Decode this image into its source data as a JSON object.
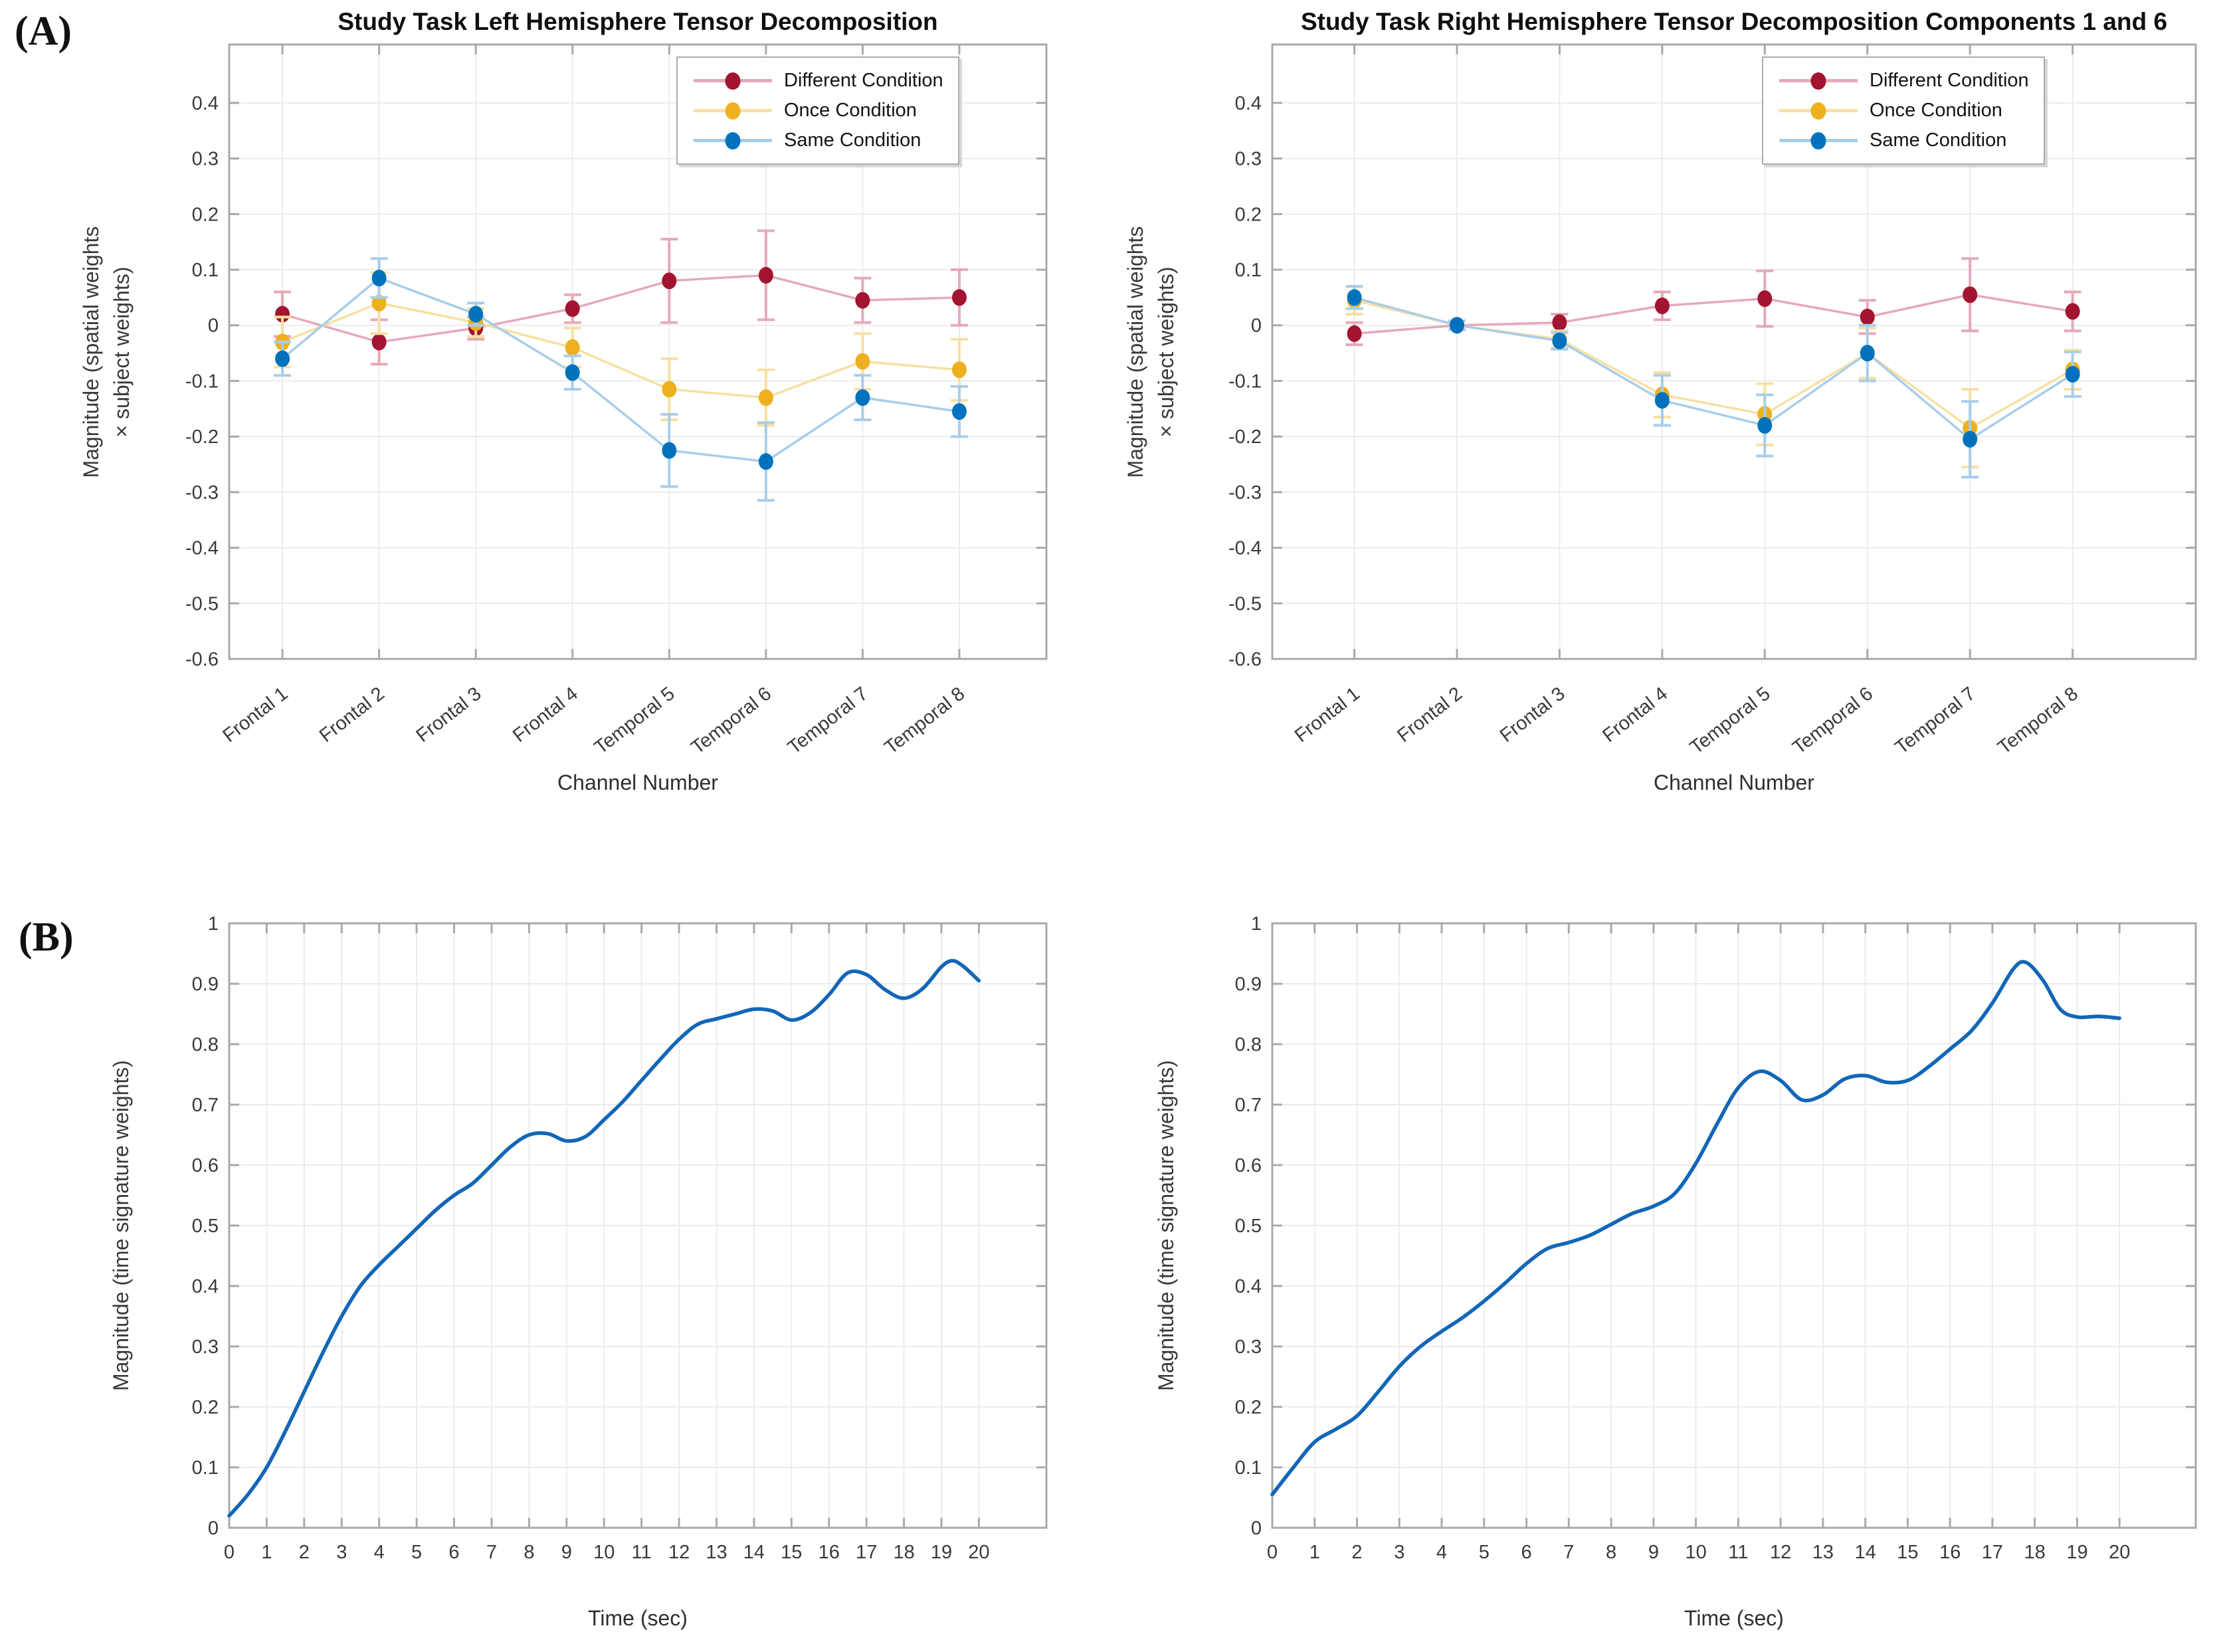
{
  "panel_labels": {
    "a": "(A)",
    "b": "(B)"
  },
  "colors": {
    "axis_box": "#a9a9a9",
    "grid": "#ececec",
    "tick_text": "#3a3a3a",
    "title_text": "#0f0f0f",
    "curve_blue": "#1266b7"
  },
  "chart_data": [
    {
      "id": "top-left",
      "type": "line",
      "variant": "errorbar",
      "title": "Study Task Left Hemisphere Tensor Decomposition",
      "xlabel": "Channel Number",
      "ylabel": [
        "Magnitude (spatial weights",
        "× subject weights)"
      ],
      "categories": [
        "Frontal 1",
        "Frontal 2",
        "Frontal 3",
        "Frontal 4",
        "Temporal 5",
        "Temporal 6",
        "Temporal 7",
        "Temporal 8"
      ],
      "ylim": [
        -0.6,
        0.505
      ],
      "yticks": [
        0.4,
        0.3,
        0.2,
        0.1,
        0,
        -0.1,
        -0.2,
        -0.3,
        -0.4,
        -0.5,
        -0.6
      ],
      "grid": true,
      "legend_position": "top-right-inset",
      "series": [
        {
          "name": "Different Condition",
          "marker_color": "#a2142f",
          "line_color": "#e5a9b7",
          "values": [
            0.02,
            -0.03,
            -0.005,
            0.03,
            0.08,
            0.09,
            0.045,
            0.05
          ],
          "errors": [
            0.04,
            0.04,
            0.02,
            0.025,
            0.075,
            0.08,
            0.04,
            0.05
          ]
        },
        {
          "name": "Once Condition",
          "marker_color": "#edb120",
          "line_color": "#f7e0a2",
          "values": [
            -0.03,
            0.04,
            0.005,
            -0.04,
            -0.115,
            -0.13,
            -0.065,
            -0.08
          ],
          "errors": [
            0.045,
            0.055,
            0.025,
            0.035,
            0.055,
            0.05,
            0.05,
            0.055
          ]
        },
        {
          "name": "Same Condition",
          "marker_color": "#0072bd",
          "line_color": "#a8cdea",
          "values": [
            -0.06,
            0.085,
            0.02,
            -0.085,
            -0.225,
            -0.245,
            -0.13,
            -0.155
          ],
          "errors": [
            0.03,
            0.035,
            0.02,
            0.03,
            0.065,
            0.07,
            0.04,
            0.045
          ]
        }
      ]
    },
    {
      "id": "top-right",
      "type": "line",
      "variant": "errorbar",
      "title": "Study Task Right Hemisphere Tensor Decomposition Components 1 and 6",
      "xlabel": "Channel Number",
      "ylabel": [
        "Magnitude (spatial weights",
        "× subject weights)"
      ],
      "categories": [
        "Frontal 1",
        "Frontal 2",
        "Frontal 3",
        "Frontal 4",
        "Temporal 5",
        "Temporal 6",
        "Temporal 7",
        "Temporal 8"
      ],
      "ylim": [
        -0.6,
        0.505
      ],
      "yticks": [
        0.4,
        0.3,
        0.2,
        0.1,
        0,
        -0.1,
        -0.2,
        -0.3,
        -0.4,
        -0.5,
        -0.6
      ],
      "grid": true,
      "legend_position": "top-right-inset",
      "series": [
        {
          "name": "Different Condition",
          "marker_color": "#a2142f",
          "line_color": "#e5a9b7",
          "values": [
            -0.015,
            0,
            0.005,
            0.035,
            0.048,
            0.015,
            0.055,
            0.025
          ],
          "errors": [
            0.02,
            0.008,
            0.015,
            0.025,
            0.05,
            0.03,
            0.065,
            0.035
          ]
        },
        {
          "name": "Once Condition",
          "marker_color": "#edb120",
          "line_color": "#f7e0a2",
          "values": [
            0.045,
            0,
            -0.025,
            -0.125,
            -0.16,
            -0.05,
            -0.185,
            -0.08
          ],
          "errors": [
            0.025,
            0.008,
            0.015,
            0.04,
            0.055,
            0.045,
            0.07,
            0.035
          ]
        },
        {
          "name": "Same Condition",
          "marker_color": "#0072bd",
          "line_color": "#a8cdea",
          "values": [
            0.05,
            0,
            -0.028,
            -0.135,
            -0.18,
            -0.05,
            -0.205,
            -0.088
          ],
          "errors": [
            0.02,
            0.008,
            0.015,
            0.045,
            0.055,
            0.05,
            0.068,
            0.04
          ]
        }
      ]
    },
    {
      "id": "bottom-left",
      "type": "line",
      "title": "",
      "xlabel": "Time (sec)",
      "ylabel": [
        "Magnitude (time signature weights)"
      ],
      "xlim": [
        0,
        21.8
      ],
      "ylim": [
        0,
        1
      ],
      "xticks": [
        0,
        1,
        2,
        3,
        4,
        5,
        6,
        7,
        8,
        9,
        10,
        11,
        12,
        13,
        14,
        15,
        16,
        17,
        18,
        19,
        20
      ],
      "yticks": [
        0,
        0.1,
        0.2,
        0.3,
        0.4,
        0.5,
        0.6,
        0.7,
        0.8,
        0.9,
        1
      ],
      "grid": true,
      "series": [
        {
          "name": "Time signature weights",
          "color": "#1266b7",
          "points": [
            [
              0,
              0.02
            ],
            [
              0.5,
              0.055
            ],
            [
              1,
              0.1
            ],
            [
              1.5,
              0.16
            ],
            [
              2,
              0.225
            ],
            [
              2.5,
              0.29
            ],
            [
              3,
              0.35
            ],
            [
              3.5,
              0.4
            ],
            [
              4,
              0.435
            ],
            [
              4.5,
              0.465
            ],
            [
              5,
              0.495
            ],
            [
              5.5,
              0.525
            ],
            [
              6,
              0.55
            ],
            [
              6.5,
              0.57
            ],
            [
              7,
              0.6
            ],
            [
              7.5,
              0.63
            ],
            [
              8,
              0.65
            ],
            [
              8.5,
              0.652
            ],
            [
              9,
              0.64
            ],
            [
              9.5,
              0.647
            ],
            [
              10,
              0.675
            ],
            [
              10.5,
              0.705
            ],
            [
              11,
              0.74
            ],
            [
              11.5,
              0.775
            ],
            [
              12,
              0.808
            ],
            [
              12.5,
              0.833
            ],
            [
              13,
              0.842
            ],
            [
              13.5,
              0.85
            ],
            [
              14,
              0.858
            ],
            [
              14.5,
              0.855
            ],
            [
              15,
              0.84
            ],
            [
              15.5,
              0.852
            ],
            [
              16,
              0.882
            ],
            [
              16.5,
              0.918
            ],
            [
              17,
              0.915
            ],
            [
              17.5,
              0.89
            ],
            [
              18,
              0.876
            ],
            [
              18.5,
              0.892
            ],
            [
              19,
              0.928
            ],
            [
              19.3,
              0.938
            ],
            [
              19.6,
              0.928
            ],
            [
              20,
              0.905
            ]
          ]
        }
      ]
    },
    {
      "id": "bottom-right",
      "type": "line",
      "title": "",
      "xlabel": "Time (sec)",
      "ylabel": [
        "Magnitude (time signature weights)"
      ],
      "xlim": [
        0,
        21.8
      ],
      "ylim": [
        0,
        1
      ],
      "xticks": [
        0,
        1,
        2,
        3,
        4,
        5,
        6,
        7,
        8,
        9,
        10,
        11,
        12,
        13,
        14,
        15,
        16,
        17,
        18,
        19,
        20
      ],
      "yticks": [
        0,
        0.1,
        0.2,
        0.3,
        0.4,
        0.5,
        0.6,
        0.7,
        0.8,
        0.9,
        1
      ],
      "grid": true,
      "series": [
        {
          "name": "Time signature weights",
          "color": "#1266b7",
          "points": [
            [
              0,
              0.055
            ],
            [
              0.5,
              0.1
            ],
            [
              1,
              0.142
            ],
            [
              1.5,
              0.163
            ],
            [
              2,
              0.185
            ],
            [
              2.5,
              0.225
            ],
            [
              3,
              0.267
            ],
            [
              3.5,
              0.3
            ],
            [
              4,
              0.325
            ],
            [
              4.5,
              0.348
            ],
            [
              5,
              0.375
            ],
            [
              5.5,
              0.405
            ],
            [
              6,
              0.437
            ],
            [
              6.5,
              0.462
            ],
            [
              7,
              0.472
            ],
            [
              7.5,
              0.484
            ],
            [
              8,
              0.502
            ],
            [
              8.5,
              0.52
            ],
            [
              9,
              0.532
            ],
            [
              9.5,
              0.553
            ],
            [
              10,
              0.603
            ],
            [
              10.5,
              0.668
            ],
            [
              11,
              0.728
            ],
            [
              11.5,
              0.755
            ],
            [
              12,
              0.74
            ],
            [
              12.5,
              0.708
            ],
            [
              13,
              0.716
            ],
            [
              13.5,
              0.742
            ],
            [
              14,
              0.748
            ],
            [
              14.5,
              0.737
            ],
            [
              15,
              0.74
            ],
            [
              15.5,
              0.763
            ],
            [
              16,
              0.792
            ],
            [
              16.5,
              0.822
            ],
            [
              17,
              0.868
            ],
            [
              17.5,
              0.925
            ],
            [
              17.8,
              0.935
            ],
            [
              18.2,
              0.905
            ],
            [
              18.6,
              0.858
            ],
            [
              19,
              0.845
            ],
            [
              19.5,
              0.846
            ],
            [
              20,
              0.843
            ]
          ]
        }
      ]
    }
  ]
}
